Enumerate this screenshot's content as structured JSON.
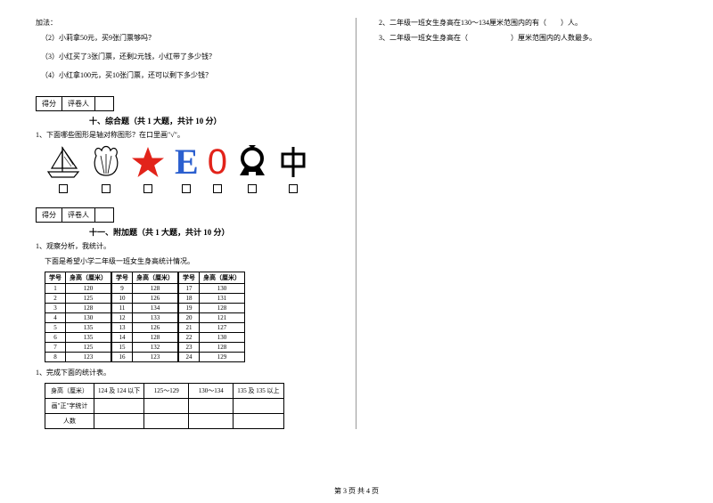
{
  "colLeft": {
    "q_header": "加法：",
    "q2": "（2）小莉拿50元，买9张门票够吗？",
    "q3": "（3）小红买了3张门票，还剩2元钱，小红带了多少钱？",
    "q4": "（4）小红拿100元，买10张门票，还可以剩下多少钱？"
  },
  "score": {
    "c1": "得分",
    "c2": "评卷人"
  },
  "section10": {
    "title": "十、综合题（共 1 大题，共计 10 分）",
    "q1": "1、下面哪些图形是轴对称图形？在口里画\"√\"。"
  },
  "shapes": {
    "star_color": "#E2231A",
    "e_color": "#2B5FCF",
    "o_color": "#E2231A",
    "letters": {
      "e": "E",
      "o": "0"
    }
  },
  "section11": {
    "title": "十一、附加题（共 1 大题，共计 10 分）",
    "q1": "1、观察分析，我统计。",
    "q1b": "下面是希望小学二年级一班女生身高统计情况。"
  },
  "heightTable": {
    "headers": [
      "学号",
      "身高（厘米）",
      "学号",
      "身高（厘米）",
      "学号",
      "身高（厘米）"
    ],
    "rows": [
      [
        "1",
        "120",
        "9",
        "128",
        "17",
        "130"
      ],
      [
        "2",
        "125",
        "10",
        "126",
        "18",
        "131"
      ],
      [
        "3",
        "128",
        "11",
        "134",
        "19",
        "128"
      ],
      [
        "4",
        "130",
        "12",
        "133",
        "20",
        "121"
      ],
      [
        "5",
        "135",
        "13",
        "126",
        "21",
        "127"
      ],
      [
        "6",
        "135",
        "14",
        "128",
        "22",
        "130"
      ],
      [
        "7",
        "125",
        "15",
        "132",
        "23",
        "128"
      ],
      [
        "8",
        "123",
        "16",
        "123",
        "24",
        "129"
      ]
    ]
  },
  "tallyIntro": "1、完成下面的统计表。",
  "tallyTable": {
    "row1": [
      "身高（厘米）",
      "124 及 124 以下",
      "125～129",
      "130～134",
      "135 及 135 以上"
    ],
    "row2": "画\"正\"字统计",
    "row3": "人数"
  },
  "colRight": {
    "q2": "2、二年级一班女生身高在130～134厘米范围内的有（　　）人。",
    "q3": "3、二年级一班女生身高在（　　　　　　）厘米范围内的人数最多。"
  },
  "footer": "第 3 页 共 4 页"
}
